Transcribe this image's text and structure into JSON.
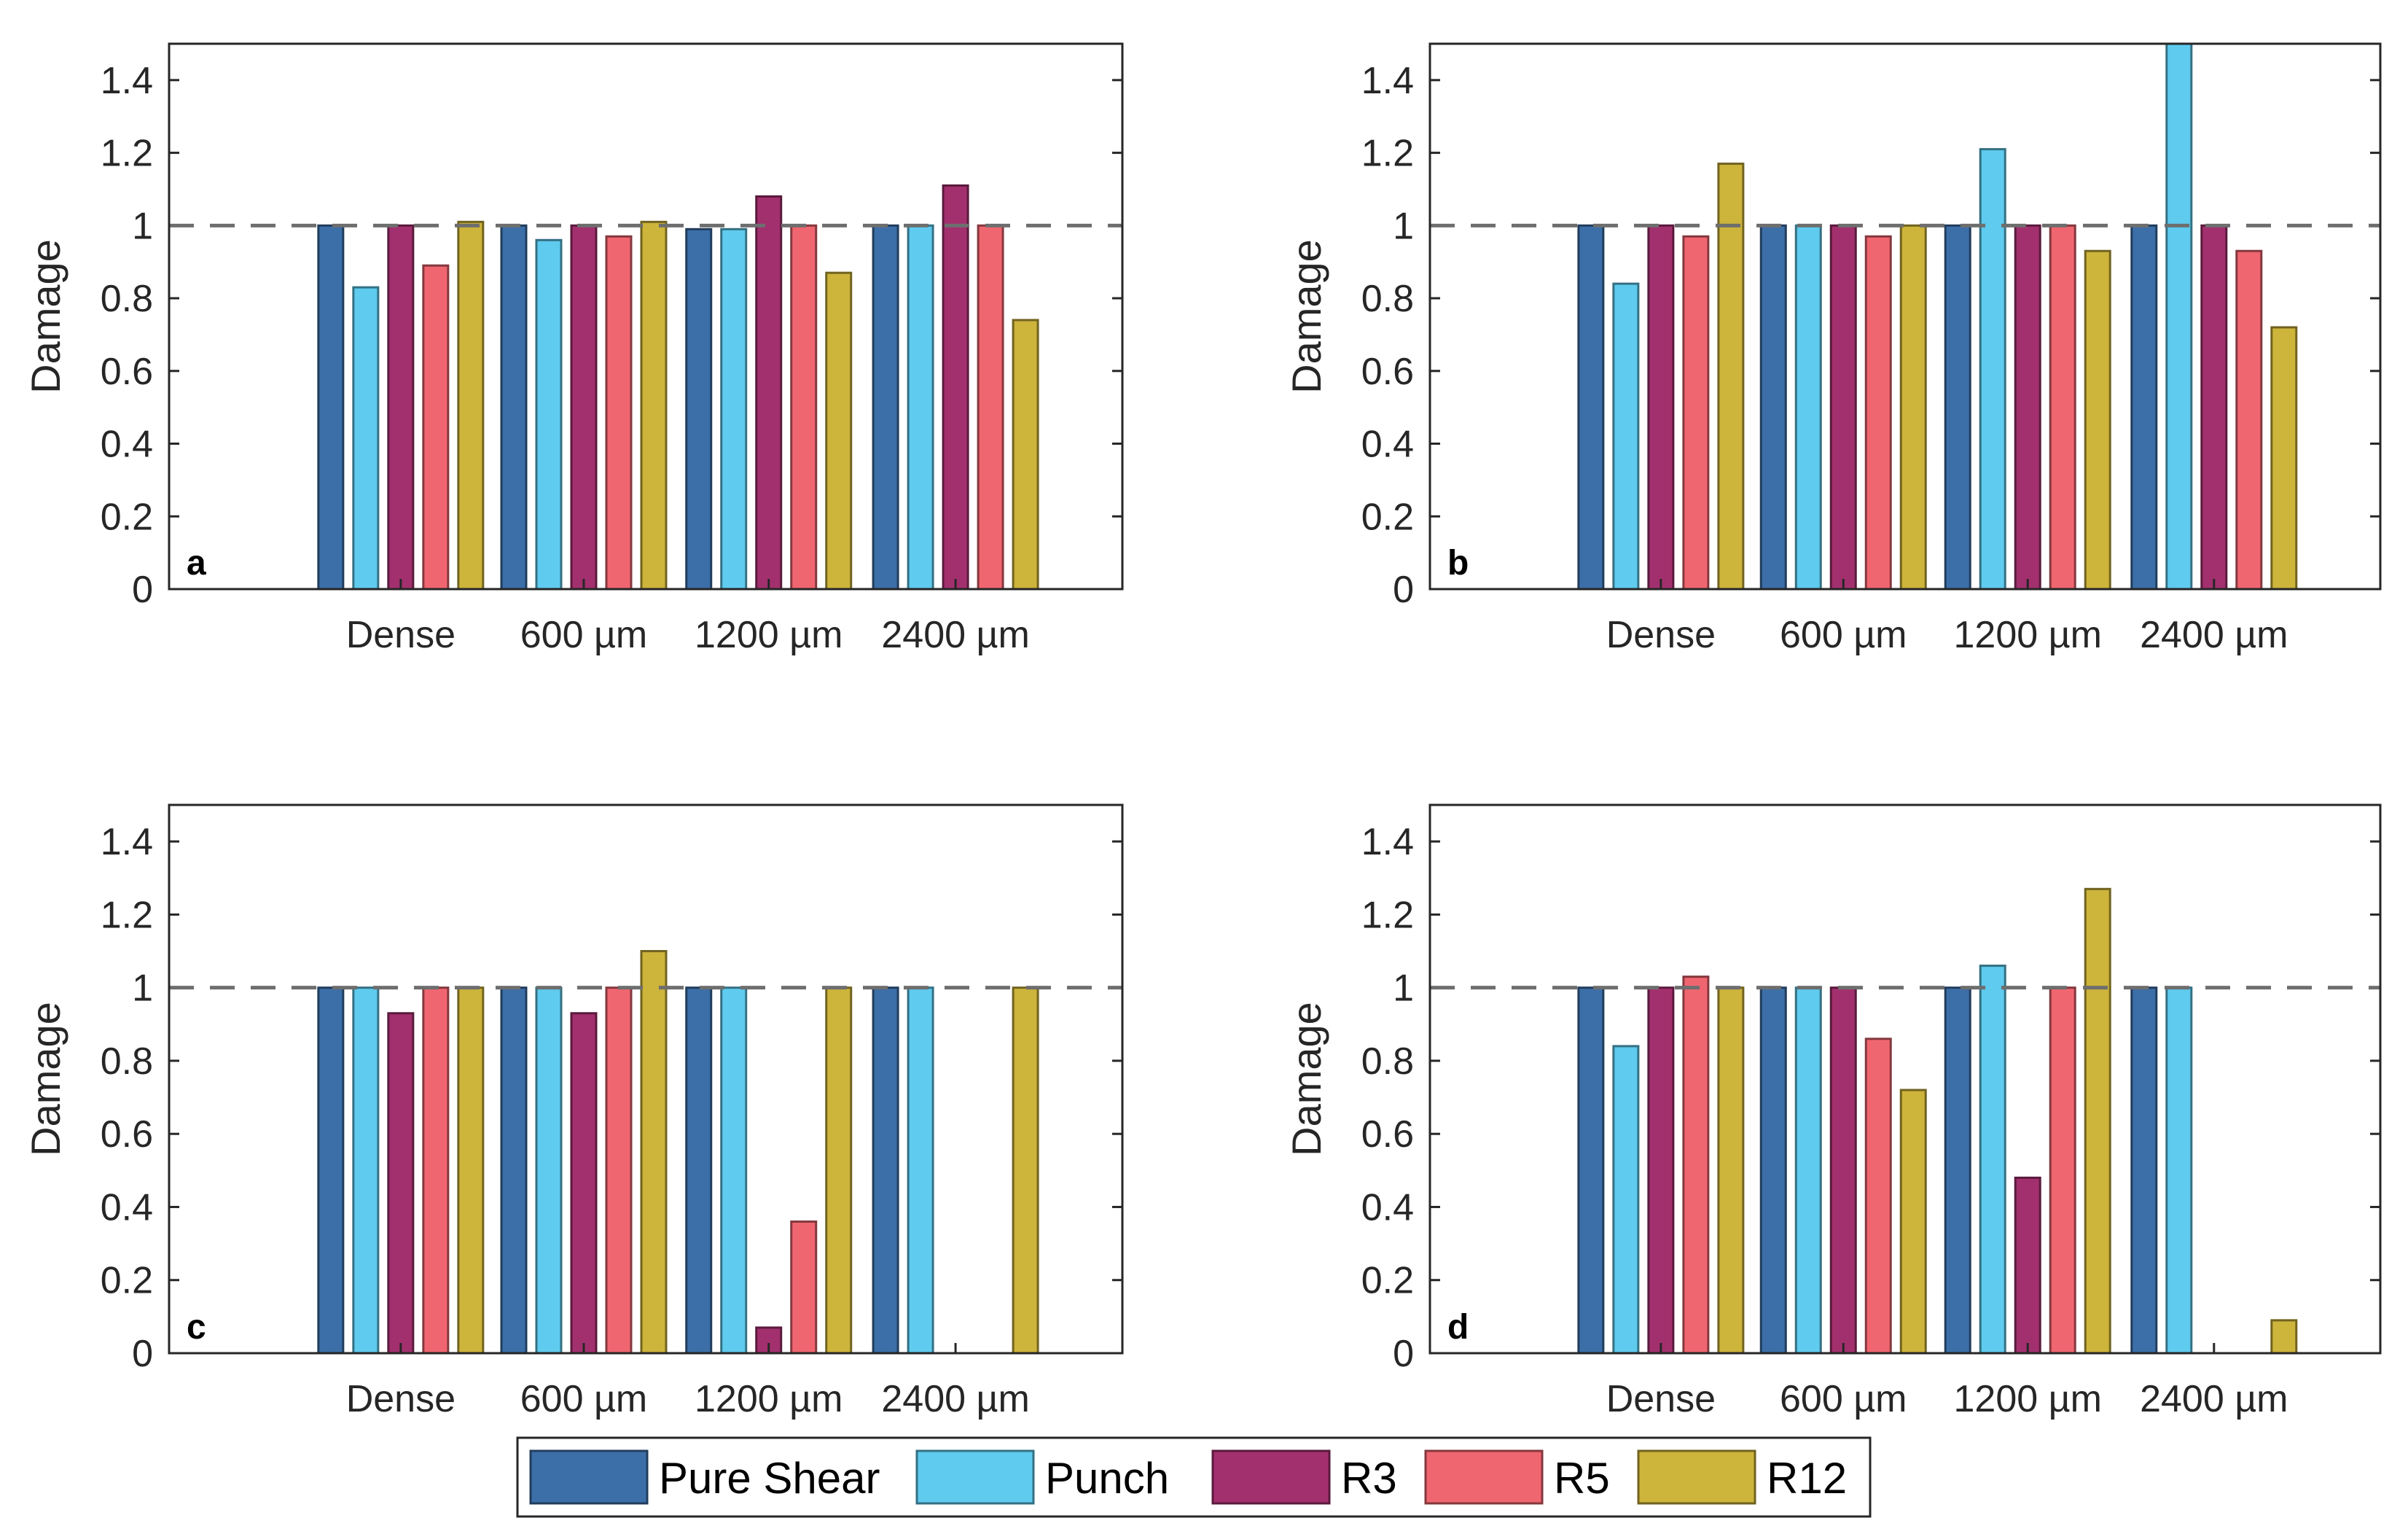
{
  "chart_data": [
    {
      "type": "bar",
      "panel_label": "a",
      "ylabel": "Damage",
      "xlabel": "",
      "ylim": [
        0,
        1.5
      ],
      "yticks": [
        "0",
        "0.2",
        "0.4",
        "0.6",
        "0.8",
        "1",
        "1.2",
        "1.4"
      ],
      "reference_line": 1,
      "categories": [
        "Dense",
        "600 µm",
        "1200 µm",
        "2400 µm"
      ],
      "series": [
        {
          "name": "Pure Shear",
          "values": [
            1.0,
            1.0,
            0.99,
            1.0
          ]
        },
        {
          "name": "Punch",
          "values": [
            0.83,
            0.96,
            0.99,
            1.0
          ]
        },
        {
          "name": "R3",
          "values": [
            1.0,
            1.0,
            1.08,
            1.11
          ]
        },
        {
          "name": "R5",
          "values": [
            0.89,
            0.97,
            1.0,
            1.0
          ]
        },
        {
          "name": "R12",
          "values": [
            1.01,
            1.01,
            0.87,
            0.74
          ]
        }
      ]
    },
    {
      "type": "bar",
      "panel_label": "b",
      "ylabel": "Damage",
      "xlabel": "",
      "ylim": [
        0,
        1.5
      ],
      "yticks": [
        "0",
        "0.2",
        "0.4",
        "0.6",
        "0.8",
        "1",
        "1.2",
        "1.4"
      ],
      "reference_line": 1,
      "categories": [
        "Dense",
        "600 µm",
        "1200 µm",
        "2400 µm"
      ],
      "series": [
        {
          "name": "Pure Shear",
          "values": [
            1.0,
            1.0,
            1.0,
            1.0
          ]
        },
        {
          "name": "Punch",
          "values": [
            0.84,
            1.0,
            1.21,
            1.5
          ]
        },
        {
          "name": "R3",
          "values": [
            1.0,
            1.0,
            1.0,
            1.0
          ]
        },
        {
          "name": "R5",
          "values": [
            0.97,
            0.97,
            1.0,
            0.93
          ]
        },
        {
          "name": "R12",
          "values": [
            1.17,
            1.0,
            0.93,
            0.72
          ]
        }
      ]
    },
    {
      "type": "bar",
      "panel_label": "c",
      "ylabel": "Damage",
      "xlabel": "",
      "ylim": [
        0,
        1.5
      ],
      "yticks": [
        "0",
        "0.2",
        "0.4",
        "0.6",
        "0.8",
        "1",
        "1.2",
        "1.4"
      ],
      "reference_line": 1,
      "categories": [
        "Dense",
        "600 µm",
        "1200 µm",
        "2400 µm"
      ],
      "series": [
        {
          "name": "Pure Shear",
          "values": [
            1.0,
            1.0,
            1.0,
            1.0
          ]
        },
        {
          "name": "Punch",
          "values": [
            1.0,
            1.0,
            1.0,
            1.0
          ]
        },
        {
          "name": "R3",
          "values": [
            0.93,
            0.93,
            0.07,
            0
          ]
        },
        {
          "name": "R5",
          "values": [
            1.0,
            1.0,
            0.36,
            0
          ]
        },
        {
          "name": "R12",
          "values": [
            1.0,
            1.1,
            1.0,
            1.0
          ]
        }
      ]
    },
    {
      "type": "bar",
      "panel_label": "d",
      "ylabel": "Damage",
      "xlabel": "",
      "ylim": [
        0,
        1.5
      ],
      "yticks": [
        "0",
        "0.2",
        "0.4",
        "0.6",
        "0.8",
        "1",
        "1.2",
        "1.4"
      ],
      "reference_line": 1,
      "categories": [
        "Dense",
        "600 µm",
        "1200 µm",
        "2400 µm"
      ],
      "series": [
        {
          "name": "Pure Shear",
          "values": [
            1.0,
            1.0,
            1.0,
            1.0
          ]
        },
        {
          "name": "Punch",
          "values": [
            0.84,
            1.0,
            1.06,
            1.0
          ]
        },
        {
          "name": "R3",
          "values": [
            1.0,
            1.0,
            0.48,
            0
          ]
        },
        {
          "name": "R5",
          "values": [
            1.03,
            0.86,
            1.0,
            0
          ]
        },
        {
          "name": "R12",
          "values": [
            1.0,
            0.72,
            1.27,
            0.09
          ]
        }
      ]
    }
  ],
  "legend": {
    "items": [
      {
        "name": "Pure Shear",
        "color": "#3C6FA8"
      },
      {
        "name": "Punch",
        "color": "#5FCBEE"
      },
      {
        "name": "R3",
        "color": "#A3306E"
      },
      {
        "name": "R5",
        "color": "#F06670"
      },
      {
        "name": "R12",
        "color": "#CDB43B"
      }
    ]
  },
  "colors": {
    "Pure Shear": "#3C6FA8",
    "Punch": "#5FCBEE",
    "R3": "#A3306E",
    "R5": "#F06670",
    "R12": "#CDB43B",
    "reference_line": "#6E6E6E",
    "axes": "#262626"
  }
}
